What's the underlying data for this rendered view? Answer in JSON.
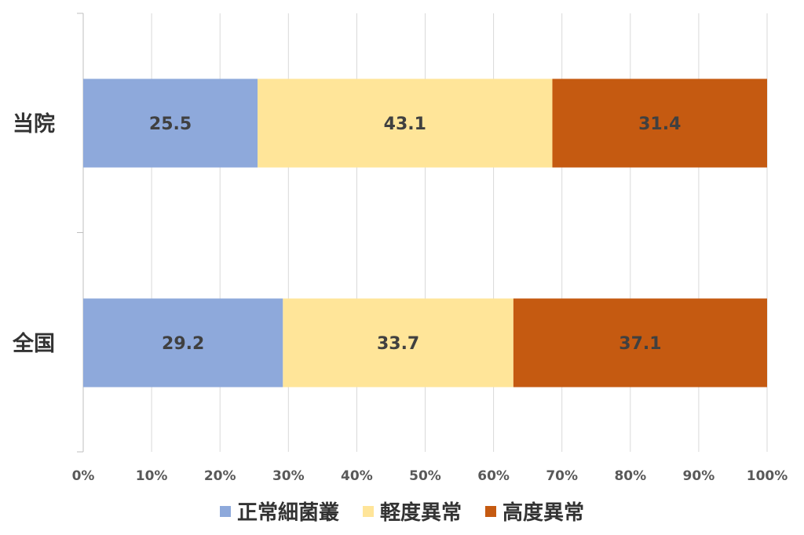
{
  "chart_data": {
    "type": "bar",
    "orientation": "horizontal",
    "stacked": true,
    "percent_stacked": true,
    "categories": [
      "当院",
      "全国"
    ],
    "series": [
      {
        "name": "正常細菌叢",
        "values": [
          25.5,
          29.2
        ],
        "color": "#8EA9DB"
      },
      {
        "name": "軽度異常",
        "values": [
          43.1,
          33.7
        ],
        "color": "#FFE599"
      },
      {
        "name": "高度異常",
        "values": [
          31.4,
          37.1
        ],
        "color": "#C55A11"
      }
    ],
    "x_ticks": [
      "0%",
      "10%",
      "20%",
      "30%",
      "40%",
      "50%",
      "60%",
      "70%",
      "80%",
      "90%",
      "100%"
    ],
    "xlim": [
      0,
      100
    ],
    "grid": "vertical",
    "legend_position": "bottom",
    "data_labels": true
  }
}
